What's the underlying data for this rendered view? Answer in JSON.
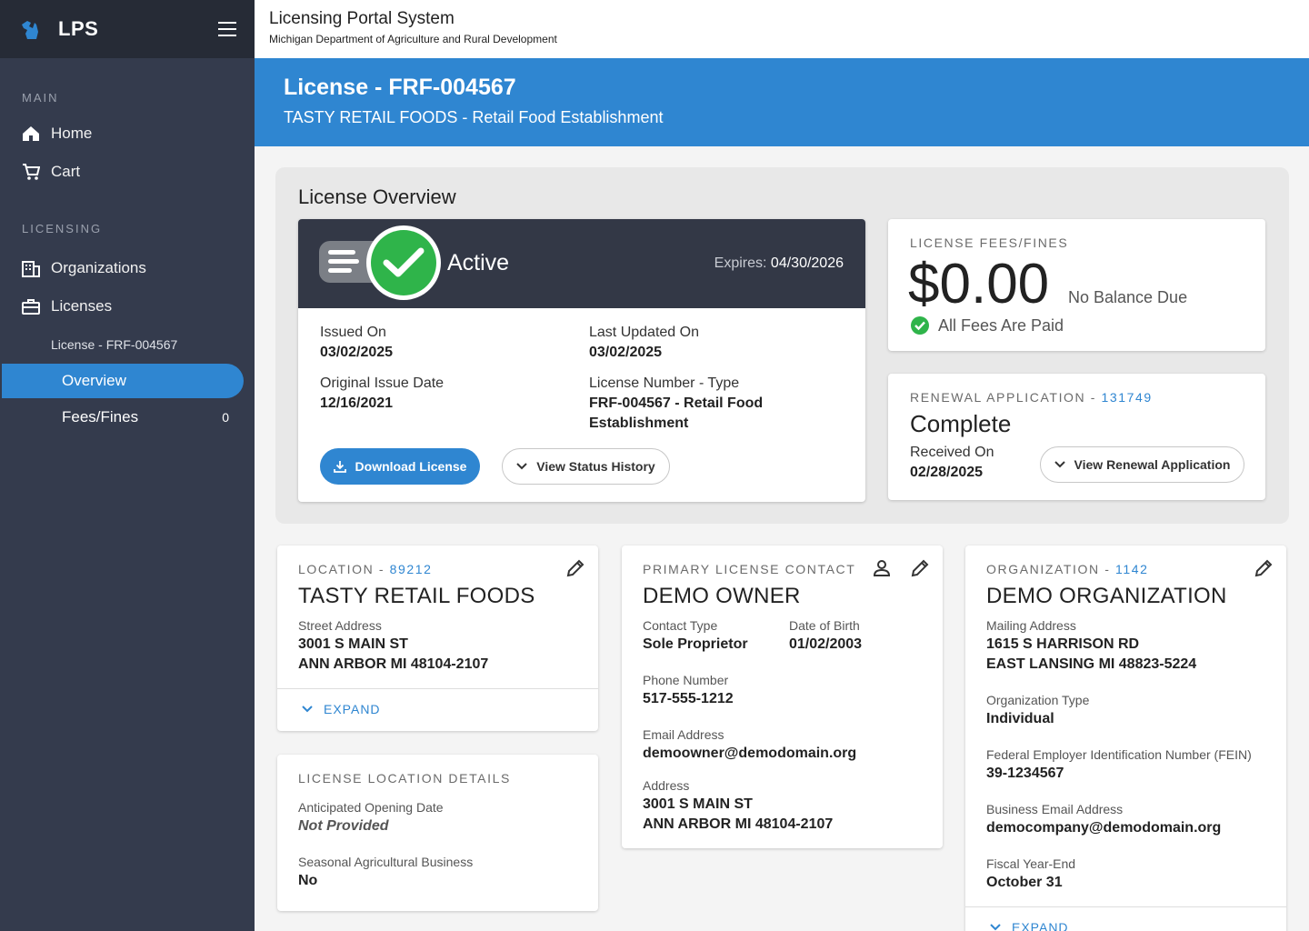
{
  "app": {
    "short_name": "LPS"
  },
  "topbar": {
    "title": "Licensing Portal System",
    "subtitle": "Michigan Department of Agriculture and Rural Development"
  },
  "sidebar": {
    "sections": {
      "main": "MAIN",
      "licensing": "LICENSING"
    },
    "items": {
      "home": "Home",
      "cart": "Cart",
      "organizations": "Organizations",
      "licenses": "Licenses",
      "license_sub": "License - FRF-004567",
      "overview": "Overview",
      "fees": "Fees/Fines",
      "fees_count": "0"
    }
  },
  "banner": {
    "title": "License - FRF-004567",
    "subtitle": "TASTY RETAIL FOODS - Retail Food Establishment"
  },
  "overview": {
    "title": "License Overview",
    "status": "Active",
    "expires_label": "Expires:",
    "expires_value": "04/30/2026",
    "issued_on_label": "Issued On",
    "issued_on": "03/02/2025",
    "last_updated_label": "Last Updated On",
    "last_updated": "03/02/2025",
    "original_issue_label": "Original Issue Date",
    "original_issue": "12/16/2021",
    "license_number_label": "License Number - Type",
    "license_number": "FRF-004567 - Retail Food Establishment",
    "download_btn": "Download License",
    "history_btn": "View Status History"
  },
  "fees": {
    "overline": "LICENSE FEES/FINES",
    "amount": "$0.00",
    "balance_note": "No Balance Due",
    "paid_note": "All Fees Are Paid"
  },
  "renewal": {
    "overline": "RENEWAL APPLICATION - ",
    "app_id": "131749",
    "status": "Complete",
    "received_label": "Received On",
    "received": "02/28/2025",
    "view_btn": "View Renewal Application"
  },
  "location": {
    "overline": "LOCATION - ",
    "id": "89212",
    "name": "TASTY RETAIL FOODS",
    "address_label": "Street Address",
    "address_line1": "3001 S MAIN ST",
    "address_line2": "ANN ARBOR MI 48104-2107",
    "expand": "EXPAND"
  },
  "location_details": {
    "overline": "LICENSE LOCATION DETAILS",
    "opening_label": "Anticipated Opening Date",
    "opening": "Not Provided",
    "seasonal_label": "Seasonal Agricultural Business",
    "seasonal": "No"
  },
  "contact": {
    "overline": "PRIMARY LICENSE CONTACT",
    "name": "DEMO OWNER",
    "type_label": "Contact Type",
    "type": "Sole Proprietor",
    "dob_label": "Date of Birth",
    "dob": "01/02/2003",
    "phone_label": "Phone Number",
    "phone": "517-555-1212",
    "email_label": "Email Address",
    "email": "demoowner@demodomain.org",
    "address_label": "Address",
    "address_line1": "3001 S MAIN ST",
    "address_line2": "ANN ARBOR MI 48104-2107"
  },
  "organization": {
    "overline": "ORGANIZATION - ",
    "id": "1142",
    "name": "DEMO ORGANIZATION",
    "mailing_label": "Mailing Address",
    "mailing_line1": "1615 S HARRISON RD",
    "mailing_line2": "EAST LANSING MI 48823-5224",
    "type_label": "Organization Type",
    "type": "Individual",
    "fein_label": "Federal Employer Identification Number (FEIN)",
    "fein": "39-1234567",
    "email_label": "Business Email Address",
    "email": "democompany@demodomain.org",
    "fiscal_label": "Fiscal Year-End",
    "fiscal": "October 31",
    "expand": "EXPAND"
  },
  "colors": {
    "sidebar": "#343b4d",
    "brand_bar": "#262b36",
    "accent": "#2f86d1",
    "success": "#2fb44a",
    "status_header": "#333846"
  }
}
